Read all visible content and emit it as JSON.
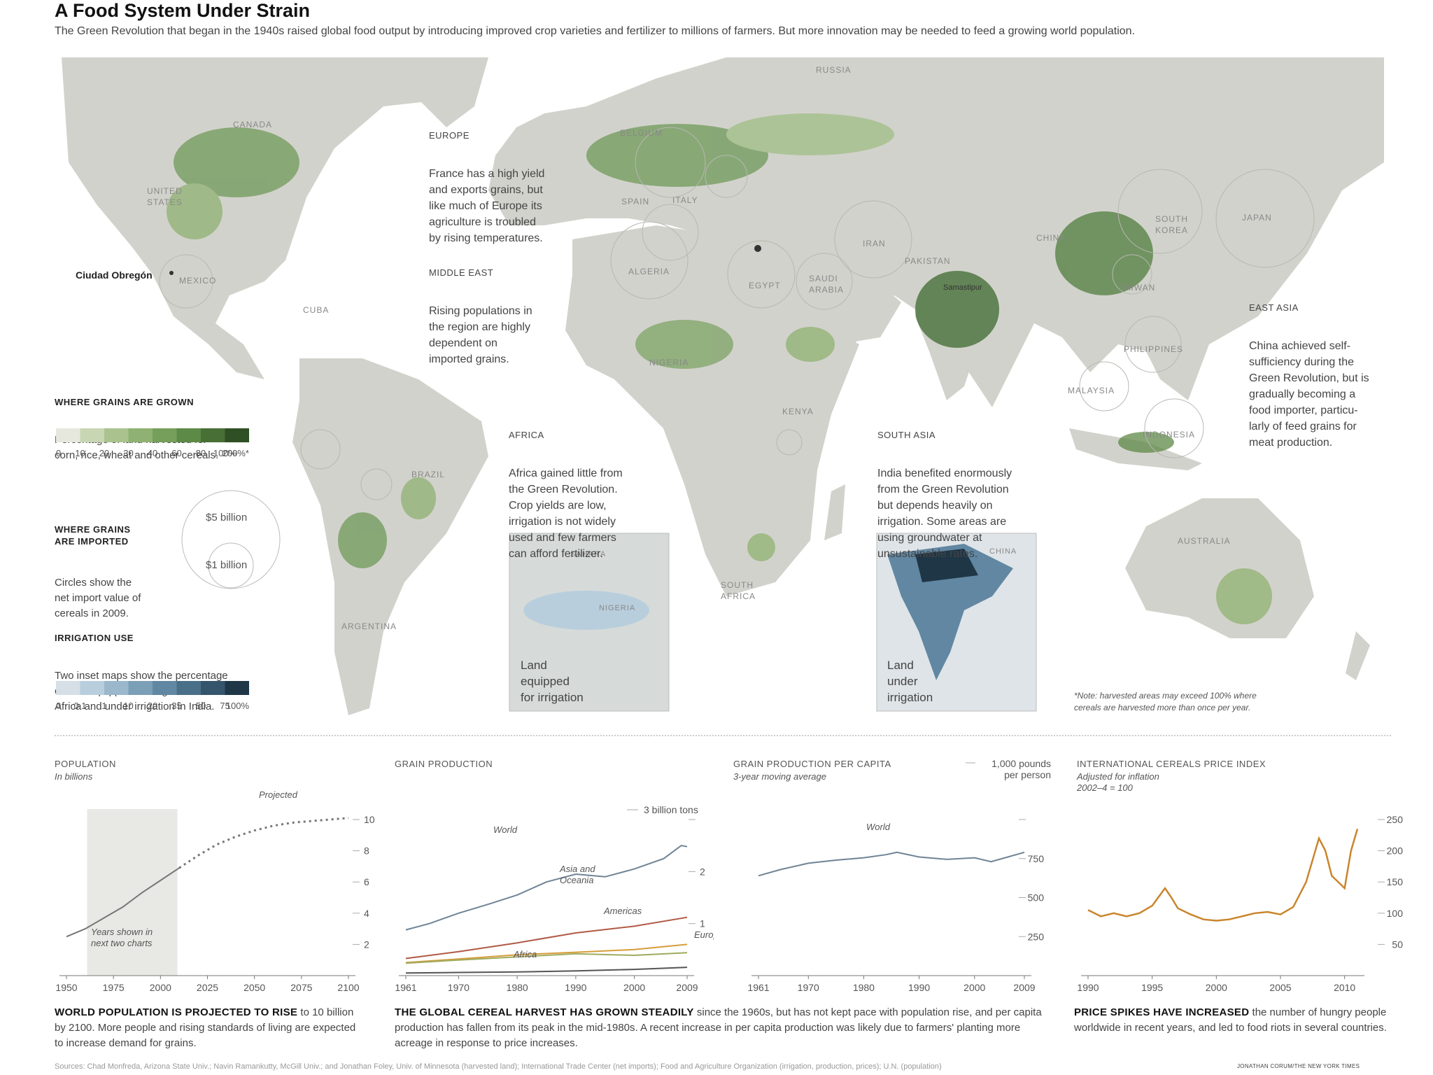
{
  "title": "A Food System Under Strain",
  "subtitle": "The Green Revolution that began in the 1940s raised global food output by introducing improved crop varieties and fertilizer to millions of farmers. But more innovation may be needed to feed a growing world population.",
  "colors": {
    "land": "#d2d2cc",
    "ocean": "#ffffff",
    "grain": "#5e8a4a",
    "irrigation": "#4a7390",
    "price": "#c9852c",
    "world_line": "#6f8496",
    "asia_line": "#b05a45",
    "americas_line": "#d69d3c",
    "europe_line": "#9fab5e",
    "africa_line": "#555555"
  },
  "map_labels": {
    "russia": "RUSSIA",
    "canada": "CANADA",
    "us": "UNITED\nSTATES",
    "mexico": "MEXICO",
    "cuba": "CUBA",
    "brazil": "BRAZIL",
    "argentina": "ARGENTINA",
    "belgium": "BELGIUM",
    "spain": "SPAIN",
    "italy": "ITALY",
    "algeria": "ALGERIA",
    "egypt": "EGYPT",
    "saudi": "SAUDI\nARABIA",
    "iran": "IRAN",
    "pakistan": "PAKISTAN",
    "china": "CHINA",
    "south_korea": "SOUTH\nKOREA",
    "japan": "JAPAN",
    "taiwan": "TAIWAN",
    "philippines": "PHILIPPINES",
    "malaysia": "MALAYSIA",
    "indonesia": "INDONESIA",
    "nigeria": "NIGERIA",
    "kenya": "KENYA",
    "south_africa": "SOUTH\nAFRICA",
    "australia": "AUSTRALIA",
    "samastipur": "Samastipur",
    "ciudad": "Ciudad Obregón"
  },
  "annotations": {
    "europe": {
      "head": "EUROPE",
      "text": "France has a high yield\nand exports grains, but\nlike much of Europe its\nagriculture is troubled\nby rising temperatures."
    },
    "mideast": {
      "head": "MIDDLE EAST",
      "text": "Rising populations in\nthe region are highly\ndependent on\nimported grains."
    },
    "africa": {
      "head": "AFRICA",
      "text": "Africa gained little from\nthe Green Revolution.\nCrop yields are low,\nirrigation is not widely\nused and few farmers\ncan afford fertilizer."
    },
    "southasia": {
      "head": "SOUTH ASIA",
      "text": "India benefited enormously\nfrom the Green Revolution\nbut depends heavily on\nirrigation. Some areas are\nusing groundwater at\nunsustainable rates."
    },
    "eastasia": {
      "head": "EAST ASIA",
      "text": "China achieved self-\nsufficiency during the\nGreen Revolution, but is\ngradually becoming a\nfood importer, particu-\nlarly of feed grains for\nmeat production."
    }
  },
  "legend": {
    "grains_head": "WHERE GRAINS ARE GROWN",
    "grains_text": "Percentage of land harvested for\ncorn, rice, wheat and other cereals.",
    "grain_scale": [
      "0",
      "10",
      "20",
      "30",
      "40",
      "60",
      "80",
      "100%",
      "200%*"
    ],
    "grain_colors": [
      "#e6e8de",
      "#c8d6b4",
      "#aac38e",
      "#8fb172",
      "#759f5b",
      "#5d8a47",
      "#476f36",
      "#2f4f24"
    ],
    "imports_head": "WHERE GRAINS\nARE IMPORTED",
    "imports_text": "Circles show the\nnet import value of\ncereals in 2009.",
    "imports_big": "$5 billion",
    "imports_small": "$1 billion",
    "irr_head": "IRRIGATION USE",
    "irr_text": "Two inset maps show the percentage\nof land equipped for irrigation in West\nAfrica and under irrigation in India.",
    "irr_scale": [
      "0",
      "0.1",
      "1",
      "10",
      "20",
      "35",
      "50",
      "75",
      "100%"
    ],
    "irr_colors": [
      "#d6dfe6",
      "#b9cedc",
      "#9ab7cc",
      "#7c9fb8",
      "#6187a2",
      "#4a6f89",
      "#35556c",
      "#1f3647"
    ]
  },
  "insets": {
    "africa_label": "Land\nequipped\nfor irrigation",
    "africa_sahara": "SAHARA",
    "africa_nigeria": "NIGERIA",
    "india_label": "Land\nunder\nirrigation",
    "india_china": "CHINA"
  },
  "map_note": "*Note: harvested areas may exceed 100% where\ncereals are harvested more than once per year.",
  "charts": {
    "pop": {
      "title": "POPULATION",
      "sub": "In billions",
      "projected": "Projected",
      "shade_label": "Years shown in\nnext two charts",
      "caption_bold": "WORLD POPULATION IS PROJECTED TO RISE",
      "caption": " to 10 billion by 2100. More people and rising standards of living are expected to increase demand for grains."
    },
    "grain": {
      "title": "GRAIN PRODUCTION",
      "unit": "3 billion tons",
      "caption_bold": "THE GLOBAL CEREAL HARVEST HAS GROWN STEADILY",
      "caption": " since the 1960s, but has not kept pace with population rise, and per capita production has fallen from its peak in the mid-1980s. A recent increase in per capita production was likely due to farmers' planting more acreage in response to price increases."
    },
    "percap": {
      "title": "GRAIN PRODUCTION PER CAPITA",
      "sub": "3-year moving average",
      "unit": "1,000 pounds\nper person"
    },
    "price": {
      "title": "INTERNATIONAL CEREALS PRICE INDEX",
      "sub": "Adjusted for inflation\n2002–4 = 100",
      "caption_bold": "PRICE SPIKES HAVE INCREASED",
      "caption": " the number of hungry people worldwide in recent years, and led to food riots in several countries."
    }
  },
  "chart_data": [
    {
      "type": "line",
      "title": "POPULATION",
      "ylabel": "In billions",
      "xlim": [
        1950,
        2100
      ],
      "ylim": [
        0,
        10
      ],
      "x_ticks": [
        1950,
        1975,
        2000,
        2025,
        2050,
        2075,
        2100
      ],
      "y_ticks": [
        2,
        4,
        6,
        8,
        10
      ],
      "shaded_range": [
        1961,
        2009
      ],
      "series": [
        {
          "name": "",
          "x": [
            1950,
            1960,
            1970,
            1980,
            1990,
            2000,
            2010
          ],
          "values": [
            2.5,
            3.0,
            3.7,
            4.4,
            5.3,
            6.1,
            6.9
          ]
        },
        {
          "name": "Projected",
          "x": [
            2010,
            2020,
            2030,
            2040,
            2050,
            2060,
            2070,
            2080,
            2090,
            2100
          ],
          "values": [
            6.9,
            7.7,
            8.4,
            8.9,
            9.3,
            9.6,
            9.8,
            9.9,
            10.0,
            10.1
          ]
        }
      ]
    },
    {
      "type": "line",
      "title": "GRAIN PRODUCTION",
      "ylabel": "billion tons",
      "xlim": [
        1961,
        2009
      ],
      "ylim": [
        0,
        3
      ],
      "x_ticks": [
        1961,
        1970,
        1980,
        1990,
        2000,
        2009
      ],
      "y_ticks": [
        1,
        2,
        3
      ],
      "series": [
        {
          "name": "World",
          "x": [
            1961,
            1965,
            1970,
            1975,
            1980,
            1985,
            1990,
            1995,
            2000,
            2005,
            2008,
            2009
          ],
          "values": [
            0.88,
            1.0,
            1.2,
            1.37,
            1.55,
            1.8,
            1.95,
            1.9,
            2.05,
            2.25,
            2.5,
            2.48
          ]
        },
        {
          "name": "Asia and Oceania",
          "x": [
            1961,
            1970,
            1980,
            1990,
            2000,
            2009
          ],
          "values": [
            0.33,
            0.46,
            0.63,
            0.82,
            0.95,
            1.12
          ]
        },
        {
          "name": "Americas",
          "x": [
            1961,
            1970,
            1980,
            1990,
            2000,
            2009
          ],
          "values": [
            0.25,
            0.32,
            0.4,
            0.45,
            0.5,
            0.6
          ]
        },
        {
          "name": "Europe",
          "x": [
            1961,
            1970,
            1980,
            1990,
            2000,
            2009
          ],
          "values": [
            0.24,
            0.3,
            0.36,
            0.42,
            0.39,
            0.44
          ]
        },
        {
          "name": "Africa",
          "x": [
            1961,
            1970,
            1980,
            1990,
            2000,
            2009
          ],
          "values": [
            0.05,
            0.06,
            0.07,
            0.09,
            0.12,
            0.16
          ]
        }
      ]
    },
    {
      "type": "line",
      "title": "GRAIN PRODUCTION PER CAPITA",
      "ylabel": "1,000 pounds per person",
      "xlim": [
        1961,
        2009
      ],
      "ylim": [
        0,
        1000
      ],
      "x_ticks": [
        1961,
        1970,
        1980,
        1990,
        2000,
        2009
      ],
      "y_ticks": [
        250,
        500,
        750,
        1000
      ],
      "series": [
        {
          "name": "World",
          "x": [
            1961,
            1965,
            1970,
            1975,
            1980,
            1984,
            1986,
            1990,
            1995,
            2000,
            2003,
            2006,
            2009
          ],
          "values": [
            640,
            680,
            720,
            740,
            755,
            775,
            790,
            760,
            745,
            755,
            730,
            760,
            790
          ]
        }
      ]
    },
    {
      "type": "line",
      "title": "INTERNATIONAL CEREALS PRICE INDEX",
      "ylabel": "Adjusted for inflation 2002–4 = 100",
      "xlim": [
        1990,
        2011
      ],
      "ylim": [
        0,
        250
      ],
      "x_ticks": [
        1990,
        1995,
        2000,
        2005,
        2010
      ],
      "y_ticks": [
        50,
        100,
        150,
        200,
        250
      ],
      "series": [
        {
          "name": "",
          "x": [
            1990,
            1991,
            1992,
            1993,
            1994,
            1995,
            1996,
            1996.5,
            1997,
            1998,
            1999,
            2000,
            2001,
            2002,
            2003,
            2004,
            2005,
            2006,
            2007,
            2008,
            2008.5,
            2009,
            2010,
            2010.5,
            2011
          ],
          "values": [
            105,
            95,
            100,
            95,
            100,
            112,
            140,
            125,
            108,
            98,
            90,
            88,
            90,
            95,
            100,
            102,
            98,
            110,
            150,
            220,
            200,
            160,
            140,
            200,
            235
          ]
        }
      ]
    }
  ],
  "sources": "Sources: Chad Monfreda, Arizona State Univ.; Navin Ramankutty, McGill Univ.; and Jonathan Foley, Univ. of Minnesota (harvested land); International Trade Center (net imports); Food and Agriculture Organization (irrigation, production, prices); U.N. (population)",
  "credit": "JONATHAN CORUM/THE NEW YORK TIMES"
}
